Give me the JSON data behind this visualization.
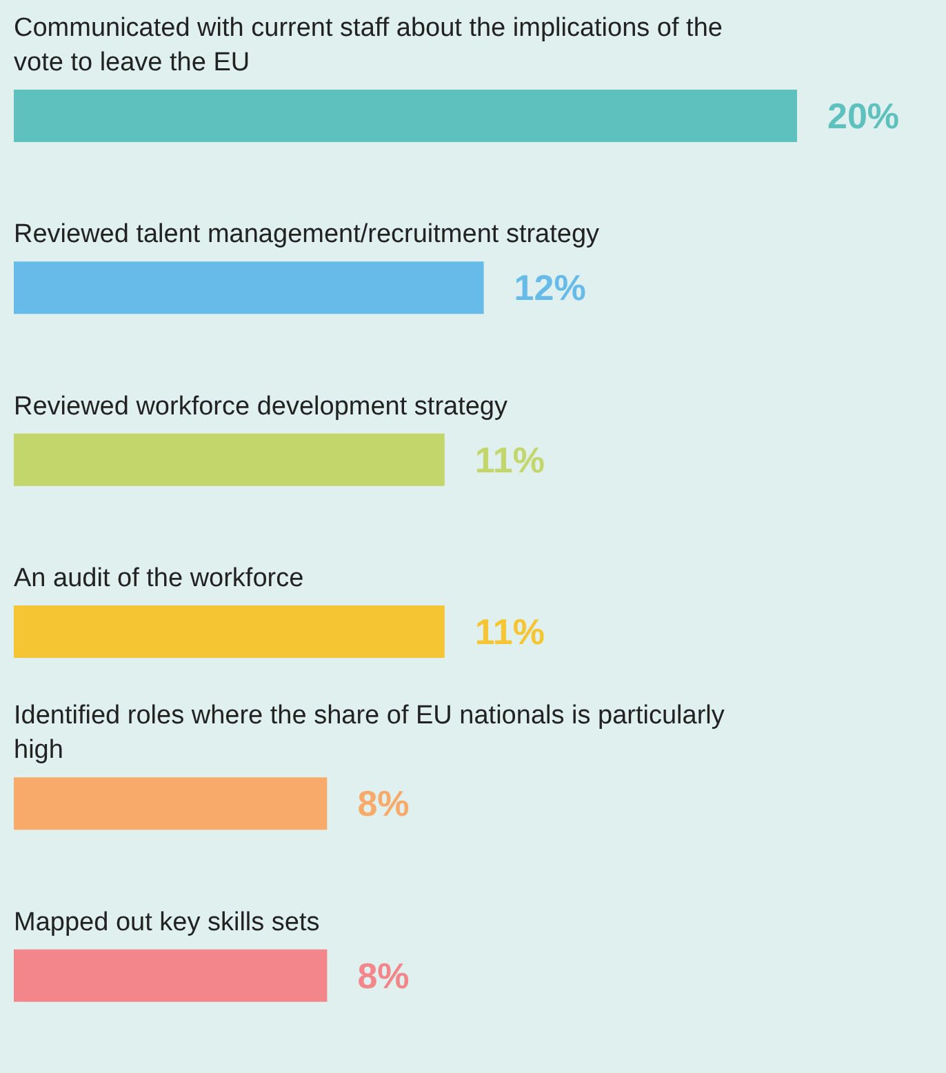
{
  "chart_data": {
    "type": "bar",
    "orientation": "horizontal",
    "categories": [
      "Communicated with current staff about the implications of the vote to leave the EU",
      "Reviewed talent management/recruitment strategy",
      "Reviewed workforce development strategy",
      "An audit of the workforce",
      "Identified roles where the share of EU nationals is particularly high",
      "Mapped out key skills sets"
    ],
    "values": [
      20,
      12,
      11,
      11,
      8,
      8
    ],
    "colors": [
      "#5fc1bd",
      "#67bbe8",
      "#c2d66b",
      "#f5c533",
      "#f8aa6a",
      "#f2868b"
    ],
    "value_labels": [
      "20%",
      "12%",
      "11%",
      "11%",
      "8%",
      "8%"
    ]
  }
}
